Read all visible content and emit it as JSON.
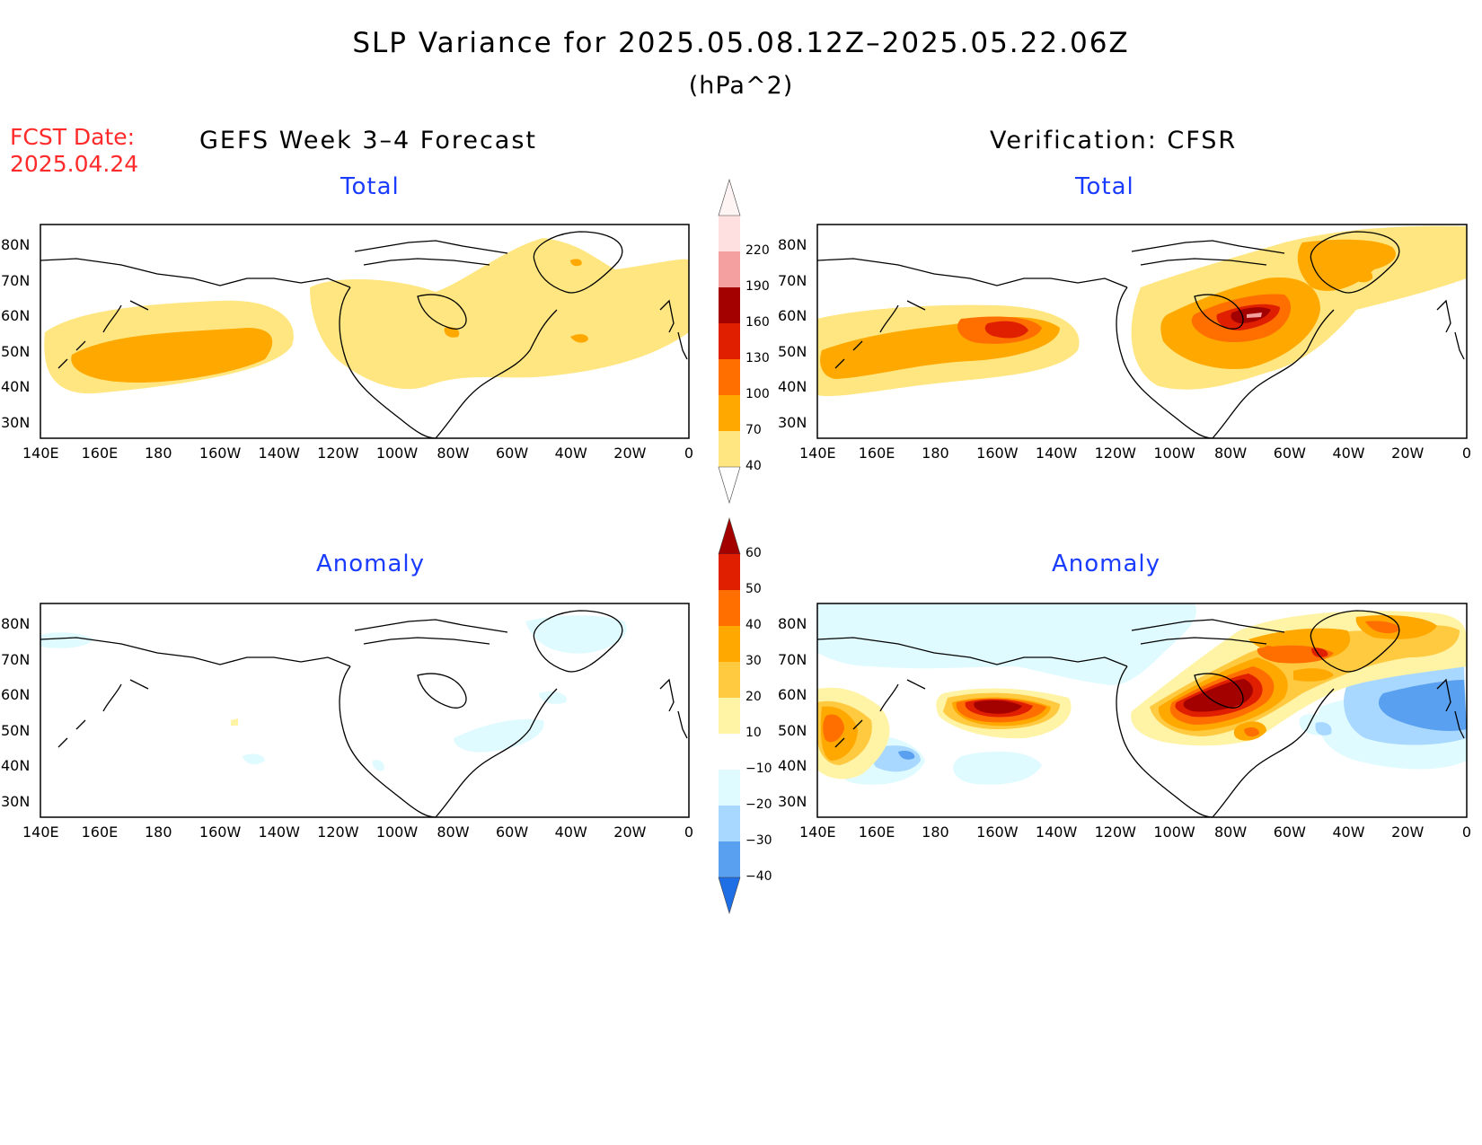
{
  "header": {
    "title": "SLP Variance for 2025.05.08.12Z–2025.05.22.06Z",
    "units": "(hPa^2)",
    "fcst_label": "FCST Date:",
    "fcst_date": "2025.04.24",
    "left_column": "GEFS Week 3–4 Forecast",
    "right_column": "Verification: CFSR"
  },
  "panels": {
    "forecast_total": {
      "subtitle": "Total"
    },
    "verification_total": {
      "subtitle": "Total"
    },
    "forecast_anomaly": {
      "subtitle": "Anomaly"
    },
    "verification_anomaly": {
      "subtitle": "Anomaly"
    }
  },
  "axes": {
    "lat_labels": [
      "80N",
      "70N",
      "60N",
      "50N",
      "40N",
      "30N"
    ],
    "lon_labels": [
      "140E",
      "160E",
      "180",
      "160W",
      "140W",
      "120W",
      "100W",
      "80W",
      "60W",
      "40W",
      "20W",
      "0"
    ]
  },
  "colorbars": {
    "total": {
      "levels": [
        "40",
        "70",
        "100",
        "130",
        "160",
        "190",
        "220"
      ],
      "colors": [
        "#ffe680",
        "#ffa800",
        "#ff6f00",
        "#e01e00",
        "#a30000",
        "#f4a0a0",
        "#ffe0e0",
        "#fff4f4"
      ]
    },
    "anomaly": {
      "levels": [
        "60",
        "50",
        "40",
        "30",
        "20",
        "10",
        "−10",
        "−20",
        "−30",
        "−40"
      ],
      "colors": [
        "#a30000",
        "#e01e00",
        "#ff6f00",
        "#ffa800",
        "#ffc940",
        "#fff3a6",
        "#ffffff",
        "#e0fbff",
        "#a8d8ff",
        "#5aa0f0",
        "#1e6ee6"
      ]
    }
  },
  "map_fields": {
    "forecast_total": [
      {
        "level": 1,
        "note": "40-70 band over North Pacific, Canada and North Atlantic"
      },
      {
        "level": 2,
        "note": "70-100 core over North Pacific"
      }
    ],
    "verification_total": [
      {
        "level": 1,
        "note": "40-70 broad band"
      },
      {
        "level": 2,
        "note": "70-100"
      },
      {
        "level": 3,
        "note": "100-130"
      },
      {
        "level": 4,
        "note": "130-160"
      },
      {
        "level": 5,
        "note": "160-190 near Hudson Bay"
      }
    ]
  }
}
